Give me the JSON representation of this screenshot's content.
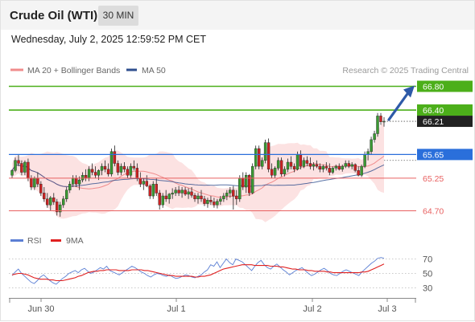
{
  "header": {
    "title": "Crude Oil (WTI)",
    "timeframe": "30 MIN"
  },
  "datetime": "Wednesday, July 2, 2025 12:59:52 PM CET",
  "legend": {
    "ma20": {
      "label": "MA 20 + Bollinger Bands",
      "color": "#f08c8c"
    },
    "ma50": {
      "label": "MA 50",
      "color": "#2f4f8f"
    },
    "credit": "Research © 2025 Trading Central"
  },
  "rsi_legend": {
    "rsi": {
      "label": "RSI",
      "color": "#5b7fd4"
    },
    "ma9": {
      "label": "9MA",
      "color": "#e02020"
    }
  },
  "chart_data": [
    {
      "type": "candlestick",
      "x_labels": [
        "Jun 30",
        "Jul 1",
        "Jul 2",
        "Jul 3"
      ],
      "price_range": [
        64.5,
        66.95
      ],
      "levels": [
        {
          "value": "66.80",
          "style": "resistance",
          "color": "#4caf1a"
        },
        {
          "value": "66.40",
          "style": "resistance",
          "color": "#4caf1a"
        },
        {
          "value": "66.21",
          "style": "last-price",
          "color": "#222222"
        },
        {
          "value": "65.65",
          "style": "pivot",
          "color": "#2a6fdb"
        },
        {
          "value": "65.25",
          "style": "support",
          "color": "#e86060"
        },
        {
          "value": "64.70",
          "style": "support",
          "color": "#e86060"
        }
      ],
      "projection": {
        "from": 66.21,
        "to": 66.8,
        "direction": "up"
      },
      "bullish_color": "#3a9a32",
      "bearish_color": "#cc2222",
      "candles": [
        [
          65.3,
          65.4,
          65.25,
          65.38
        ],
        [
          65.38,
          65.6,
          65.35,
          65.55
        ],
        [
          65.55,
          65.65,
          65.45,
          65.5
        ],
        [
          65.5,
          65.55,
          65.3,
          65.35
        ],
        [
          65.35,
          65.55,
          65.3,
          65.52
        ],
        [
          65.52,
          65.58,
          65.2,
          65.25
        ],
        [
          65.25,
          65.3,
          65.05,
          65.1
        ],
        [
          65.1,
          65.28,
          65.05,
          65.25
        ],
        [
          65.25,
          65.35,
          65.1,
          65.15
        ],
        [
          65.15,
          65.2,
          64.95,
          65.0
        ],
        [
          65.0,
          65.1,
          64.85,
          64.9
        ],
        [
          64.9,
          65.0,
          64.75,
          64.8
        ],
        [
          64.8,
          64.95,
          64.7,
          64.92
        ],
        [
          64.92,
          65.0,
          64.8,
          64.85
        ],
        [
          64.85,
          64.9,
          64.62,
          64.68
        ],
        [
          64.68,
          64.85,
          64.6,
          64.8
        ],
        [
          64.8,
          64.95,
          64.75,
          64.9
        ],
        [
          64.9,
          65.1,
          64.85,
          65.05
        ],
        [
          65.05,
          65.2,
          65.0,
          65.15
        ],
        [
          65.15,
          65.3,
          65.1,
          65.25
        ],
        [
          65.25,
          65.3,
          65.1,
          65.15
        ],
        [
          65.15,
          65.28,
          65.05,
          65.22
        ],
        [
          65.22,
          65.35,
          65.18,
          65.3
        ],
        [
          65.3,
          65.4,
          65.2,
          65.25
        ],
        [
          65.25,
          65.45,
          65.2,
          65.4
        ],
        [
          65.4,
          65.5,
          65.3,
          65.35
        ],
        [
          65.35,
          65.45,
          65.25,
          65.3
        ],
        [
          65.3,
          65.4,
          65.22,
          65.38
        ],
        [
          65.38,
          65.5,
          65.3,
          65.45
        ],
        [
          65.45,
          65.55,
          65.35,
          65.4
        ],
        [
          65.4,
          65.5,
          65.28,
          65.32
        ],
        [
          65.32,
          65.75,
          65.28,
          65.7
        ],
        [
          65.7,
          65.8,
          65.45,
          65.5
        ],
        [
          65.5,
          65.55,
          65.3,
          65.35
        ],
        [
          65.35,
          65.5,
          65.3,
          65.45
        ],
        [
          65.45,
          65.52,
          65.35,
          65.4
        ],
        [
          65.4,
          65.45,
          65.25,
          65.3
        ],
        [
          65.3,
          65.5,
          65.25,
          65.45
        ],
        [
          65.45,
          65.55,
          65.38,
          65.42
        ],
        [
          65.42,
          65.5,
          65.2,
          65.25
        ],
        [
          65.25,
          65.35,
          65.1,
          65.15
        ],
        [
          65.15,
          65.25,
          65.05,
          65.2
        ],
        [
          65.2,
          65.3,
          65.1,
          65.12
        ],
        [
          65.12,
          65.15,
          64.9,
          64.95
        ],
        [
          64.95,
          65.2,
          64.9,
          65.15
        ],
        [
          65.15,
          65.25,
          64.95,
          65.0
        ],
        [
          65.0,
          65.05,
          64.72,
          64.8
        ],
        [
          64.8,
          65.0,
          64.75,
          64.95
        ],
        [
          64.95,
          65.05,
          64.85,
          64.9
        ],
        [
          64.9,
          65.0,
          64.82,
          64.98
        ],
        [
          64.98,
          65.08,
          64.9,
          65.0
        ],
        [
          65.0,
          65.1,
          64.95,
          65.05
        ],
        [
          65.05,
          65.12,
          64.95,
          65.0
        ],
        [
          65.0,
          65.1,
          64.92,
          65.05
        ],
        [
          65.05,
          65.1,
          64.95,
          64.98
        ],
        [
          64.98,
          65.08,
          64.9,
          65.02
        ],
        [
          65.02,
          65.1,
          64.92,
          64.96
        ],
        [
          64.96,
          65.0,
          64.85,
          64.9
        ],
        [
          64.9,
          65.0,
          64.82,
          64.95
        ],
        [
          64.95,
          65.05,
          64.85,
          64.9
        ],
        [
          64.9,
          64.95,
          64.78,
          64.82
        ],
        [
          64.82,
          64.92,
          64.75,
          64.88
        ],
        [
          64.88,
          64.95,
          64.8,
          64.85
        ],
        [
          64.85,
          64.92,
          64.75,
          64.8
        ],
        [
          64.8,
          64.9,
          64.74,
          64.86
        ],
        [
          64.86,
          64.95,
          64.8,
          64.9
        ],
        [
          64.9,
          65.0,
          64.85,
          64.95
        ],
        [
          64.95,
          65.05,
          64.88,
          65.0
        ],
        [
          65.0,
          65.1,
          64.92,
          65.05
        ],
        [
          65.05,
          65.12,
          64.72,
          64.95
        ],
        [
          64.95,
          65.05,
          64.8,
          64.9
        ],
        [
          64.9,
          65.3,
          64.85,
          65.25
        ],
        [
          65.25,
          65.35,
          65.05,
          65.1
        ],
        [
          65.1,
          65.35,
          65.0,
          65.3
        ],
        [
          65.3,
          65.32,
          64.95,
          65.0
        ],
        [
          65.0,
          65.5,
          64.98,
          65.45
        ],
        [
          65.45,
          65.8,
          65.4,
          65.75
        ],
        [
          65.75,
          65.8,
          65.4,
          65.45
        ],
        [
          65.45,
          65.6,
          65.4,
          65.55
        ],
        [
          65.55,
          65.9,
          65.5,
          65.85
        ],
        [
          65.85,
          65.92,
          65.35,
          65.4
        ],
        [
          65.4,
          65.5,
          65.25,
          65.3
        ],
        [
          65.3,
          65.45,
          65.25,
          65.42
        ],
        [
          65.42,
          65.6,
          65.38,
          65.55
        ],
        [
          65.55,
          65.6,
          65.28,
          65.32
        ],
        [
          65.32,
          65.45,
          65.28,
          65.4
        ],
        [
          65.4,
          65.58,
          65.35,
          65.52
        ],
        [
          65.52,
          65.62,
          65.4,
          65.45
        ],
        [
          65.45,
          65.5,
          65.35,
          65.4
        ],
        [
          65.4,
          65.7,
          65.38,
          65.65
        ],
        [
          65.65,
          65.72,
          65.4,
          65.45
        ],
        [
          65.45,
          65.6,
          65.42,
          65.55
        ],
        [
          65.55,
          65.62,
          65.45,
          65.5
        ],
        [
          65.5,
          65.6,
          65.4,
          65.45
        ],
        [
          65.45,
          65.52,
          65.38,
          65.48
        ],
        [
          65.48,
          65.55,
          65.42,
          65.45
        ],
        [
          65.45,
          65.5,
          65.35,
          65.4
        ],
        [
          65.4,
          65.48,
          65.35,
          65.45
        ],
        [
          65.45,
          65.52,
          65.38,
          65.42
        ],
        [
          65.42,
          65.5,
          65.3,
          65.35
        ],
        [
          65.35,
          65.45,
          65.32,
          65.42
        ],
        [
          65.42,
          65.48,
          65.38,
          65.45
        ],
        [
          65.45,
          65.5,
          65.38,
          65.4
        ],
        [
          65.4,
          65.48,
          65.36,
          65.45
        ],
        [
          65.45,
          65.55,
          65.42,
          65.5
        ],
        [
          65.5,
          65.55,
          65.42,
          65.45
        ],
        [
          65.45,
          65.52,
          65.4,
          65.48
        ],
        [
          65.48,
          65.5,
          65.35,
          65.38
        ],
        [
          65.38,
          65.45,
          65.28,
          65.3
        ],
        [
          65.3,
          65.48,
          65.27,
          65.45
        ],
        [
          65.45,
          65.7,
          65.42,
          65.65
        ],
        [
          65.65,
          65.75,
          65.55,
          65.7
        ],
        [
          65.7,
          65.95,
          65.65,
          65.9
        ],
        [
          65.9,
          66.05,
          65.85,
          66.0
        ],
        [
          66.0,
          66.35,
          65.95,
          66.3
        ],
        [
          66.3,
          66.35,
          66.15,
          66.2
        ],
        [
          66.2,
          66.28,
          66.12,
          66.21
        ]
      ]
    },
    {
      "type": "line",
      "series": [
        {
          "name": "RSI",
          "values": [
            47,
            52,
            56,
            50,
            46,
            42,
            38,
            36,
            40,
            45,
            48,
            44,
            40,
            37,
            35,
            39,
            43,
            46,
            50,
            52,
            54,
            51,
            55,
            57,
            53,
            50,
            52,
            55,
            58,
            56,
            60,
            54,
            52,
            50,
            48,
            51,
            54,
            57,
            60,
            58,
            55,
            52,
            50,
            47,
            45,
            48,
            50,
            49,
            47,
            46,
            48,
            45,
            43,
            44,
            46,
            48,
            47,
            45,
            44,
            46,
            48,
            52,
            55,
            62,
            60,
            66,
            58,
            64,
            70,
            65,
            62,
            70,
            68,
            66,
            62,
            58,
            54,
            60,
            65,
            68,
            62,
            58,
            56,
            60,
            63,
            59,
            55,
            52,
            48,
            51,
            54,
            56,
            58,
            54,
            50,
            47,
            49,
            52,
            55,
            57,
            54,
            50,
            48,
            47,
            50,
            53,
            55,
            53,
            51,
            49,
            47,
            52,
            56,
            60,
            64,
            67,
            71,
            72,
            71
          ]
        },
        {
          "name": "9MA",
          "values": [
            48,
            49,
            50,
            50,
            49,
            48,
            46,
            44,
            43,
            42,
            42,
            42,
            41,
            41,
            40,
            40,
            40,
            41,
            42,
            43,
            44,
            46,
            47,
            49,
            51,
            52,
            53,
            53,
            54,
            54,
            55,
            55,
            55,
            55,
            54,
            54,
            54,
            54,
            55,
            55,
            55,
            55,
            54,
            54,
            53,
            52,
            51,
            50,
            49,
            48,
            47,
            47,
            46,
            46,
            46,
            46,
            46,
            46,
            45,
            45,
            46,
            46,
            47,
            48,
            50,
            52,
            54,
            56,
            57,
            58,
            59,
            60,
            61,
            62,
            62,
            62,
            62,
            61,
            61,
            61,
            61,
            61,
            60,
            60,
            60,
            59,
            59,
            58,
            57,
            56,
            56,
            55,
            55,
            55,
            54,
            54,
            53,
            53,
            53,
            53,
            52,
            52,
            51,
            51,
            51,
            51,
            51,
            51,
            51,
            51,
            51,
            52,
            52,
            53,
            55,
            57,
            59,
            61,
            63
          ]
        }
      ],
      "y_ticks": [
        "70",
        "50",
        "30"
      ],
      "y_range": [
        20,
        80
      ]
    }
  ]
}
